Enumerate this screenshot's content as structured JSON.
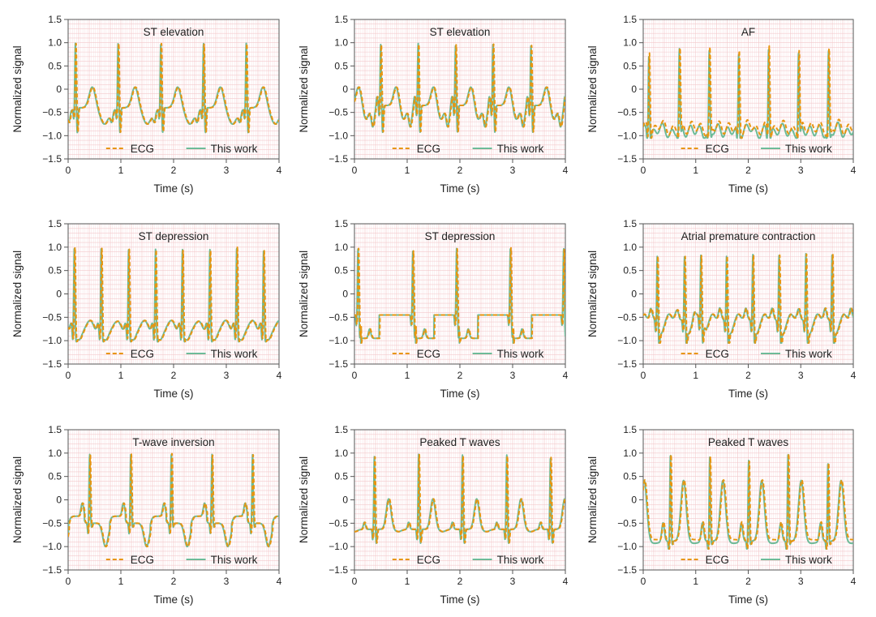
{
  "figure": {
    "colors": {
      "ecg": "#E8950F",
      "this_work": "#6DBB98",
      "grid_major": "#F3C9CC",
      "grid_minor": "#FAE3E5",
      "axis": "#555555",
      "text": "#222222"
    },
    "legend": {
      "ecg_label": "ECG",
      "this_work_label": "This work"
    }
  },
  "chart_data": [
    {
      "type": "line",
      "title": "ST elevation",
      "xlabel": "Time (s)",
      "ylabel": "Normalized signal",
      "xlim": [
        0,
        4
      ],
      "ylim": [
        -1.5,
        1.5
      ],
      "xticks": [
        "0",
        "1",
        "2",
        "3",
        "4"
      ],
      "yticks": [
        "1.5",
        "1.0",
        "0.5",
        "0",
        "-0.5",
        "-1.0",
        "-1.5"
      ],
      "legend_position": "bottom-center",
      "grid": true,
      "series": [
        {
          "name": "ECG",
          "style": "dashed"
        },
        {
          "name": "This work",
          "style": "solid"
        }
      ],
      "morphology": "st_elevation",
      "r_peak_times_s": [
        0.15,
        0.96,
        1.77,
        2.58,
        3.39
      ],
      "r_peak_values": [
        1.0,
        1.0,
        1.0,
        1.0,
        1.0
      ],
      "baseline": -0.4,
      "t_wave_peak": 0.05,
      "s_trough": -1.0
    },
    {
      "type": "line",
      "title": "ST elevation",
      "xlabel": "Time (s)",
      "ylabel": "Normalized signal",
      "xlim": [
        0,
        4
      ],
      "ylim": [
        -1.5,
        1.5
      ],
      "xticks": [
        "0",
        "1",
        "2",
        "3",
        "4"
      ],
      "yticks": [
        "1.5",
        "1.0",
        "0.5",
        "0",
        "-0.5",
        "-1.0",
        "-1.5"
      ],
      "legend_position": "bottom-center",
      "grid": true,
      "series": [
        {
          "name": "ECG",
          "style": "dashed"
        },
        {
          "name": "This work",
          "style": "solid"
        }
      ],
      "morphology": "st_elevation_2",
      "r_peak_times_s": [
        0.51,
        1.22,
        1.93,
        2.64,
        3.36
      ],
      "r_peak_values": [
        0.97,
        1.0,
        0.97,
        0.98,
        0.95
      ],
      "baseline": -0.35,
      "t_wave_peak": -0.05,
      "s_trough": -1.0
    },
    {
      "type": "line",
      "title": "AF",
      "xlabel": "Time (s)",
      "ylabel": "Normalized signal",
      "xlim": [
        0,
        4
      ],
      "ylim": [
        -1.5,
        1.5
      ],
      "xticks": [
        "0",
        "1",
        "2",
        "3",
        "4"
      ],
      "yticks": [
        "1.5",
        "1.0",
        "0.5",
        "0",
        "-0.5",
        "-1.0",
        "-1.5"
      ],
      "legend_position": "bottom-center",
      "grid": true,
      "series": [
        {
          "name": "ECG",
          "style": "dashed"
        },
        {
          "name": "This work",
          "style": "solid"
        }
      ],
      "morphology": "af",
      "r_peak_times_s": [
        0.12,
        0.7,
        1.27,
        1.83,
        2.4,
        2.97,
        3.54
      ],
      "r_peak_values": [
        0.88,
        0.87,
        0.82,
        0.85,
        1.0,
        0.85,
        0.85
      ],
      "baseline": -0.85,
      "t_wave_peak": -0.7,
      "s_trough": -1.0
    },
    {
      "type": "line",
      "title": "ST depression",
      "xlabel": "Time (s)",
      "ylabel": "Normalized signal",
      "xlim": [
        0,
        4
      ],
      "ylim": [
        -1.5,
        1.5
      ],
      "xticks": [
        "0",
        "1",
        "2",
        "3",
        "4"
      ],
      "yticks": [
        "1.5",
        "1.0",
        "0.5",
        "0",
        "-0.5",
        "-1.0",
        "-1.5"
      ],
      "legend_position": "bottom-center",
      "grid": true,
      "series": [
        {
          "name": "ECG",
          "style": "dashed"
        },
        {
          "name": "This work",
          "style": "solid"
        }
      ],
      "morphology": "st_depression",
      "r_peak_times_s": [
        0.13,
        0.64,
        1.16,
        1.67,
        2.18,
        2.7,
        3.21,
        3.72
      ],
      "r_peak_values": [
        1.0,
        0.97,
        0.95,
        0.95,
        0.95,
        0.95,
        1.0,
        0.92
      ],
      "baseline": -0.9,
      "t_wave_peak": -0.5,
      "s_trough": -1.0
    },
    {
      "type": "line",
      "title": "ST depression",
      "xlabel": "Time (s)",
      "ylabel": "Normalized signal",
      "xlim": [
        0,
        4
      ],
      "ylim": [
        -1.5,
        1.5
      ],
      "xticks": [
        "0",
        "1",
        "2",
        "3",
        "4"
      ],
      "yticks": [
        "1.5",
        "1.0",
        "0.5",
        "0",
        "-0.5",
        "-1.0",
        "-1.5"
      ],
      "legend_position": "bottom-center",
      "grid": true,
      "series": [
        {
          "name": "ECG",
          "style": "dashed"
        },
        {
          "name": "This work",
          "style": "solid"
        }
      ],
      "morphology": "st_depression_2",
      "r_peak_times_s": [
        0.08,
        1.12,
        1.95,
        2.97,
        3.98
      ],
      "r_peak_values": [
        0.98,
        0.93,
        0.98,
        1.0,
        0.98
      ],
      "baseline": -0.45,
      "t_wave_peak": -0.4,
      "s_trough": -1.0
    },
    {
      "type": "line",
      "title": "Atrial premature contraction",
      "xlabel": "Time (s)",
      "ylabel": "Normalized signal",
      "xlim": [
        0,
        4
      ],
      "ylim": [
        -1.5,
        1.5
      ],
      "xticks": [
        "0",
        "1",
        "2",
        "3",
        "4"
      ],
      "yticks": [
        "1.5",
        "1.0",
        "0.5",
        "0",
        "-0.5",
        "-1.0",
        "-1.5"
      ],
      "legend_position": "bottom-center",
      "grid": true,
      "series": [
        {
          "name": "ECG",
          "style": "dashed"
        },
        {
          "name": "This work",
          "style": "solid"
        }
      ],
      "morphology": "apc",
      "r_peak_times_s": [
        0.28,
        0.8,
        1.11,
        1.6,
        2.1,
        2.6,
        3.11,
        3.61
      ],
      "r_peak_values": [
        0.93,
        0.92,
        0.9,
        0.93,
        0.97,
        0.95,
        0.98,
        0.98
      ],
      "baseline": -0.55,
      "t_wave_peak": -0.35,
      "s_trough": -1.0
    },
    {
      "type": "line",
      "title": "T-wave inversion",
      "xlabel": "Time (s)",
      "ylabel": "Normalized signal",
      "xlim": [
        0,
        4
      ],
      "ylim": [
        -1.5,
        1.5
      ],
      "xticks": [
        "0",
        "1",
        "2",
        "3",
        "4"
      ],
      "yticks": [
        "1.5",
        "1.0",
        "0.5",
        "0",
        "-0.5",
        "-1.0",
        "-1.5"
      ],
      "legend_position": "bottom-center",
      "grid": true,
      "series": [
        {
          "name": "ECG",
          "style": "dashed"
        },
        {
          "name": "This work",
          "style": "solid"
        }
      ],
      "morphology": "t_inversion",
      "r_peak_times_s": [
        0.42,
        1.2,
        1.97,
        2.74,
        3.51
      ],
      "r_peak_values": [
        0.98,
        0.98,
        1.0,
        0.98,
        0.97
      ],
      "baseline": -0.5,
      "t_wave_peak": -1.0,
      "s_trough": -0.6
    },
    {
      "type": "line",
      "title": "Peaked T waves",
      "xlabel": "Time (s)",
      "ylabel": "Normalized signal",
      "xlim": [
        0,
        4
      ],
      "ylim": [
        -1.5,
        1.5
      ],
      "xticks": [
        "0",
        "1",
        "2",
        "3",
        "4"
      ],
      "yticks": [
        "1.5",
        "1.0",
        "0.5",
        "0",
        "-0.5",
        "-1.0",
        "-1.5"
      ],
      "legend_position": "bottom-center",
      "grid": true,
      "series": [
        {
          "name": "ECG",
          "style": "dashed"
        },
        {
          "name": "This work",
          "style": "solid"
        }
      ],
      "morphology": "peaked_t",
      "r_peak_times_s": [
        0.39,
        1.23,
        2.06,
        2.9,
        3.73
      ],
      "r_peak_values": [
        0.93,
        0.98,
        0.97,
        0.97,
        0.92
      ],
      "baseline": -0.63,
      "t_wave_peak": 0.02,
      "s_trough": -0.97
    },
    {
      "type": "line",
      "title": "Peaked T waves",
      "xlabel": "Time (s)",
      "ylabel": "Normalized signal",
      "xlim": [
        0,
        4
      ],
      "ylim": [
        -1.5,
        1.5
      ],
      "xticks": [
        "0",
        "1",
        "2",
        "3",
        "4"
      ],
      "yticks": [
        "1.5",
        "1.0",
        "0.5",
        "0",
        "-0.5",
        "-1.0",
        "-1.5"
      ],
      "legend_position": "bottom-center",
      "grid": true,
      "series": [
        {
          "name": "ECG",
          "style": "dashed"
        },
        {
          "name": "This work",
          "style": "solid"
        }
      ],
      "morphology": "peaked_t_2",
      "r_peak_times_s": [
        0.53,
        1.28,
        2.02,
        2.77,
        3.53
      ],
      "r_peak_values": [
        0.98,
        0.93,
        0.85,
        1.0,
        0.8
      ],
      "baseline": -0.88,
      "t_wave_peak": 0.42,
      "s_trough": -0.97
    }
  ]
}
